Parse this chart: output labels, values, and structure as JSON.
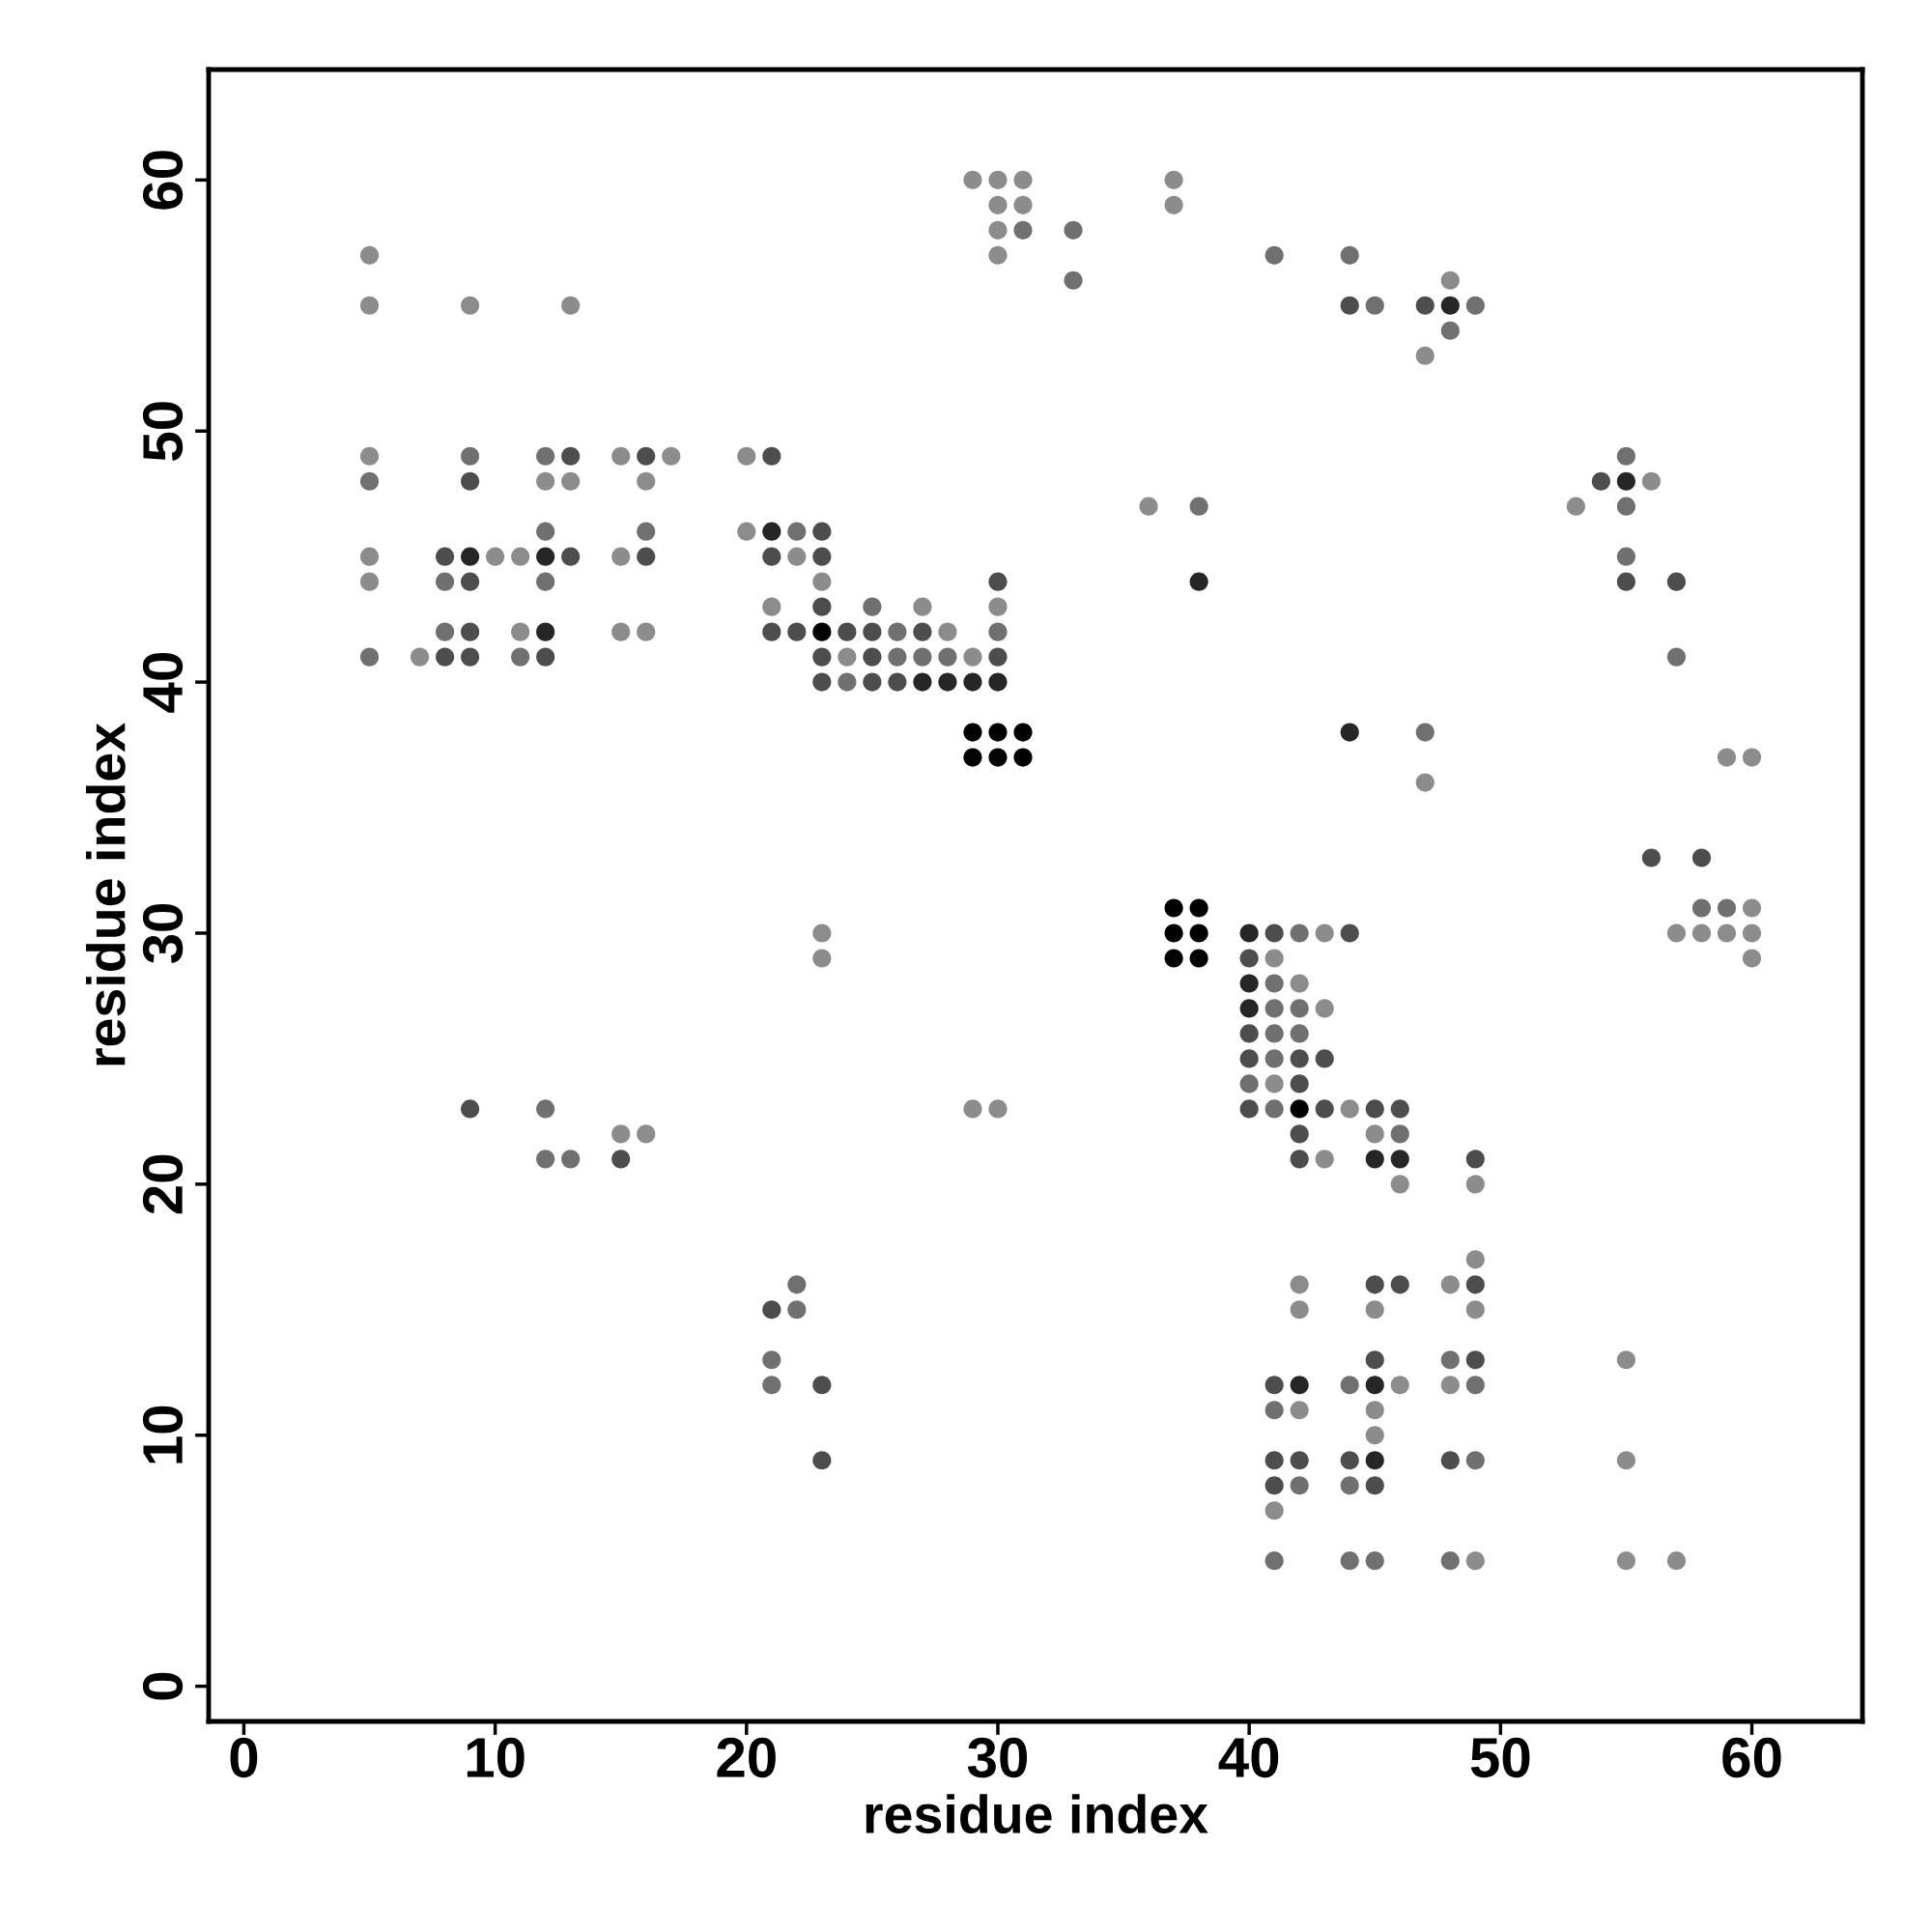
{
  "chart_data": {
    "type": "scatter",
    "xlabel": "residue index",
    "ylabel": "residue index",
    "xlim": [
      -1.4,
      64.4
    ],
    "ylim": [
      -1.4,
      64.4
    ],
    "xticks": [
      0,
      10,
      20,
      30,
      40,
      50,
      60
    ],
    "yticks": [
      0,
      10,
      20,
      30,
      40,
      50,
      60
    ],
    "grid": false,
    "legend": false,
    "marker": "circle",
    "series": [
      {
        "color": "#8c8c8c",
        "x": [
          29,
          30,
          31,
          37,
          30,
          31,
          37,
          30,
          5,
          30,
          48,
          5,
          9,
          13,
          47,
          5,
          15,
          17,
          20,
          12,
          13,
          16,
          56,
          36,
          53,
          20,
          5,
          10,
          11,
          15,
          22,
          5,
          23,
          21,
          27,
          30,
          11,
          15,
          16,
          28,
          7,
          24,
          29,
          59,
          60,
          47,
          60,
          23,
          43,
          57,
          58,
          59,
          60,
          23,
          41,
          60,
          42,
          43,
          41,
          29,
          30,
          44,
          15,
          16,
          45,
          43,
          46,
          49,
          49,
          42,
          48,
          42,
          45,
          49,
          55,
          46,
          48,
          42,
          45,
          45,
          55,
          41,
          49,
          55,
          57
        ],
        "values": [
          60,
          60,
          60,
          60,
          59,
          59,
          59,
          58,
          57,
          57,
          56,
          55,
          55,
          55,
          53,
          49,
          49,
          49,
          49,
          48,
          48,
          48,
          48,
          47,
          47,
          46,
          45,
          45,
          45,
          45,
          45,
          44,
          44,
          43,
          43,
          43,
          42,
          42,
          42,
          42,
          41,
          41,
          41,
          37,
          37,
          36,
          31,
          30,
          30,
          30,
          30,
          30,
          30,
          29,
          29,
          29,
          28,
          27,
          24,
          23,
          23,
          23,
          22,
          22,
          22,
          21,
          20,
          20,
          17,
          16,
          16,
          15,
          15,
          15,
          13,
          12,
          12,
          11,
          11,
          10,
          9,
          7,
          5,
          5,
          5
        ]
      },
      {
        "color": "#707070",
        "x": [
          31,
          33,
          41,
          44,
          33,
          45,
          49,
          48,
          9,
          12,
          55,
          5,
          38,
          55,
          12,
          16,
          22,
          55,
          8,
          12,
          25,
          8,
          26,
          30,
          5,
          11,
          26,
          27,
          28,
          57,
          24,
          47,
          58,
          59,
          42,
          41,
          41,
          42,
          41,
          42,
          41,
          40,
          12,
          41,
          46,
          12,
          13,
          22,
          22,
          21,
          48,
          21,
          44,
          49,
          41,
          49,
          42,
          44,
          41,
          44,
          45,
          48
        ],
        "values": [
          58,
          58,
          57,
          57,
          56,
          55,
          55,
          54,
          49,
          49,
          49,
          48,
          47,
          47,
          46,
          46,
          46,
          45,
          44,
          44,
          43,
          42,
          42,
          42,
          41,
          41,
          41,
          41,
          41,
          41,
          40,
          38,
          31,
          31,
          30,
          28,
          27,
          27,
          26,
          26,
          25,
          24,
          23,
          23,
          22,
          21,
          21,
          16,
          15,
          13,
          13,
          12,
          12,
          12,
          11,
          9,
          8,
          8,
          5,
          5,
          5,
          5
        ]
      },
      {
        "color": "#4d4d4d",
        "x": [
          44,
          47,
          13,
          16,
          21,
          9,
          54,
          23,
          8,
          13,
          16,
          21,
          23,
          9,
          30,
          55,
          57,
          23,
          9,
          21,
          22,
          24,
          25,
          27,
          8,
          9,
          12,
          23,
          25,
          30,
          23,
          25,
          26,
          56,
          58,
          41,
          44,
          40,
          40,
          40,
          42,
          43,
          42,
          9,
          40,
          43,
          45,
          46,
          42,
          15,
          42,
          49,
          45,
          46,
          49,
          21,
          45,
          49,
          23,
          41,
          23,
          41,
          42,
          44,
          48,
          41,
          45
        ],
        "values": [
          55,
          55,
          49,
          49,
          49,
          48,
          48,
          46,
          45,
          45,
          45,
          45,
          45,
          44,
          44,
          44,
          44,
          43,
          42,
          42,
          42,
          42,
          42,
          42,
          41,
          41,
          41,
          41,
          41,
          41,
          40,
          40,
          40,
          33,
          33,
          30,
          30,
          29,
          26,
          25,
          25,
          25,
          24,
          23,
          23,
          23,
          23,
          23,
          22,
          21,
          21,
          21,
          16,
          16,
          16,
          15,
          13,
          13,
          12,
          12,
          9,
          9,
          9,
          9,
          9,
          8,
          8
        ]
      },
      {
        "color": "#262626",
        "x": [
          48,
          55,
          21,
          9,
          12,
          38,
          12,
          27,
          28,
          29,
          30,
          44,
          40,
          40,
          40,
          45,
          46,
          42,
          45,
          45
        ],
        "values": [
          55,
          48,
          46,
          45,
          45,
          44,
          42,
          40,
          40,
          40,
          40,
          38,
          30,
          28,
          27,
          21,
          21,
          12,
          12,
          9
        ]
      },
      {
        "color": "#000000",
        "x": [
          23,
          29,
          30,
          31,
          29,
          30,
          31,
          37,
          38,
          37,
          38,
          37,
          38,
          42
        ],
        "values": [
          42,
          38,
          38,
          38,
          37,
          37,
          37,
          31,
          31,
          30,
          30,
          29,
          29,
          23
        ]
      }
    ]
  }
}
